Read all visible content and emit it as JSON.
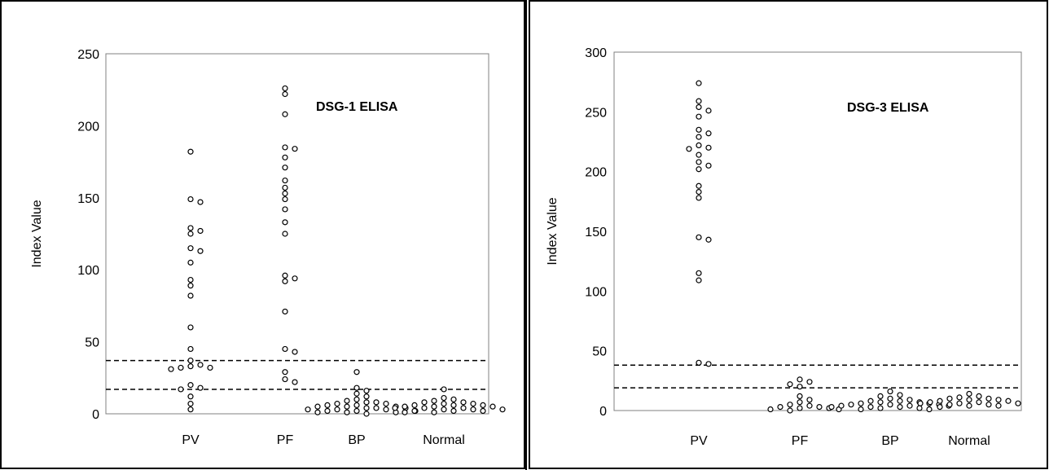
{
  "chart_data": [
    {
      "type": "scatter",
      "title": "DSG-1 ELISA",
      "ylabel": "Index Value",
      "xlabel": "",
      "ylim": [
        0,
        250
      ],
      "yticks": [
        0,
        50,
        100,
        150,
        200,
        250
      ],
      "categories": [
        "PV",
        "PF",
        "BP",
        "Normal"
      ],
      "grid": false,
      "cutoff_lines": [
        17,
        37
      ],
      "series": [
        {
          "category": "PV",
          "values": [
            182,
            149,
            147,
            129,
            127,
            125,
            115,
            113,
            105,
            93,
            89,
            82,
            60,
            45,
            37,
            34,
            33,
            32,
            32,
            31,
            20,
            18,
            17,
            12,
            7,
            3
          ]
        },
        {
          "category": "PF",
          "values": [
            226,
            222,
            208,
            185,
            184,
            178,
            171,
            162,
            157,
            153,
            149,
            142,
            133,
            125,
            96,
            94,
            92,
            71,
            45,
            43,
            29,
            24,
            22
          ]
        },
        {
          "category": "BP",
          "values": [
            29,
            18,
            16,
            14,
            12,
            10,
            9,
            8,
            8,
            7,
            7,
            6,
            6,
            5,
            5,
            5,
            4,
            4,
            4,
            3,
            3,
            3,
            2,
            2,
            2,
            1,
            1,
            1,
            0
          ]
        },
        {
          "category": "Normal",
          "values": [
            17,
            11,
            10,
            9,
            8,
            8,
            7,
            7,
            6,
            6,
            6,
            5,
            5,
            5,
            4,
            4,
            4,
            3,
            3,
            3,
            2,
            2,
            2,
            1,
            1
          ]
        }
      ]
    },
    {
      "type": "scatter",
      "title": "DSG-3 ELISA",
      "ylabel": "Index Value",
      "xlabel": "",
      "ylim": [
        0,
        300
      ],
      "yticks": [
        0,
        50,
        100,
        150,
        200,
        250,
        300
      ],
      "categories": [
        "PV",
        "PF",
        "BP",
        "Normal"
      ],
      "grid": false,
      "cutoff_lines": [
        19,
        38
      ],
      "series": [
        {
          "category": "PV",
          "values": [
            274,
            259,
            254,
            251,
            246,
            235,
            232,
            229,
            222,
            220,
            219,
            214,
            208,
            205,
            202,
            188,
            183,
            178,
            145,
            143,
            115,
            109,
            40,
            39
          ]
        },
        {
          "category": "PF",
          "values": [
            26,
            24,
            22,
            20,
            12,
            9,
            7,
            5,
            4,
            3,
            3,
            2,
            2,
            1,
            1,
            0
          ]
        },
        {
          "category": "BP",
          "values": [
            16,
            13,
            12,
            10,
            9,
            8,
            8,
            7,
            7,
            6,
            6,
            5,
            5,
            5,
            4,
            4,
            4,
            3,
            3,
            3,
            2,
            2,
            1,
            1
          ]
        },
        {
          "category": "Normal",
          "values": [
            14,
            12,
            11,
            10,
            10,
            9,
            9,
            8,
            8,
            7,
            7,
            6,
            6,
            6,
            5,
            5,
            4,
            4,
            3
          ]
        }
      ]
    }
  ]
}
